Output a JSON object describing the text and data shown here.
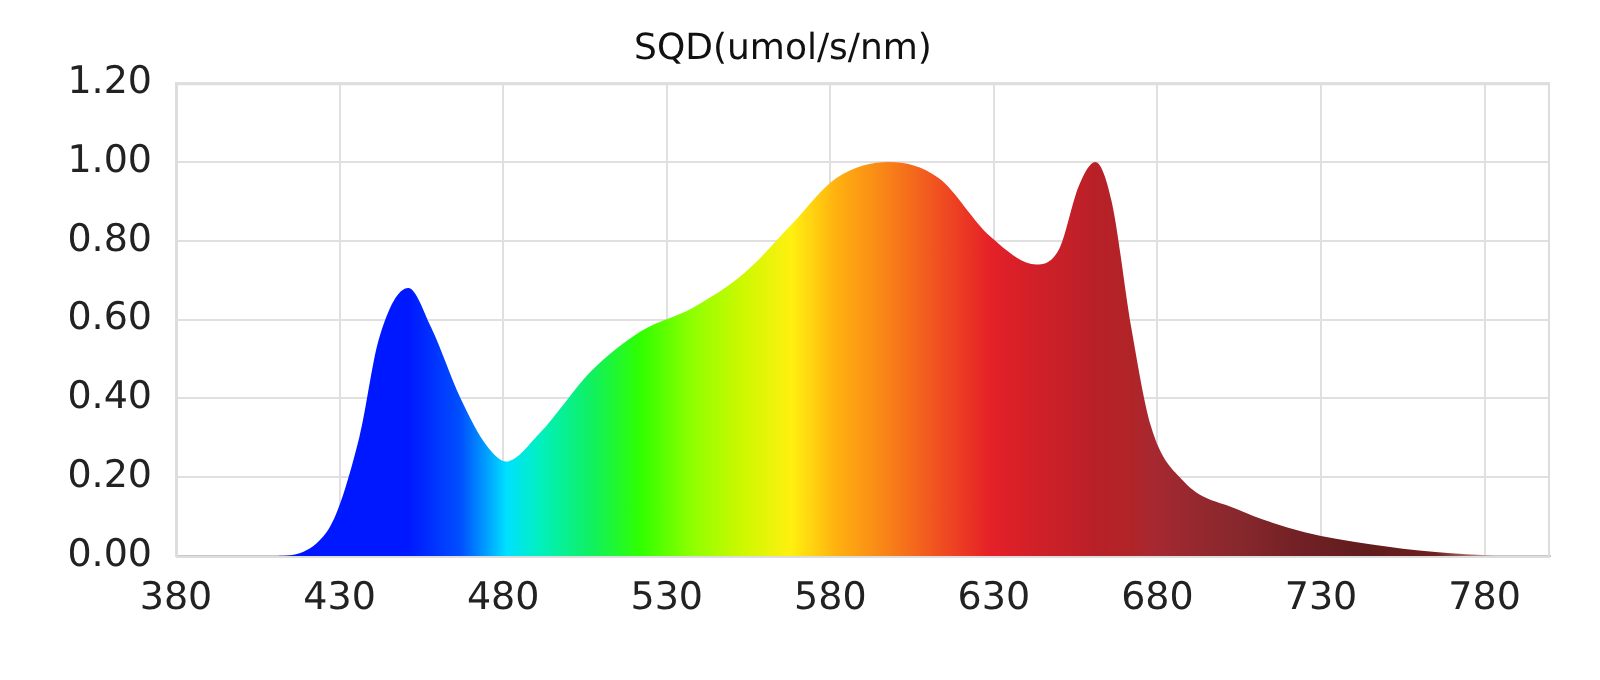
{
  "chart_data": {
    "type": "area",
    "title": "SQD(umol/s/nm)",
    "x": [
      380,
      402,
      410,
      426,
      436,
      442,
      451,
      458,
      467,
      475,
      481,
      491,
      507,
      522,
      538,
      554,
      568,
      582,
      598,
      613,
      629,
      643,
      650,
      656,
      661,
      666,
      672,
      678,
      688,
      704,
      725,
      745,
      765,
      784
    ],
    "series": [
      {
        "values": [
          0,
          0,
          0,
          0.06,
          0.3,
          0.55,
          0.68,
          0.58,
          0.4,
          0.28,
          0.24,
          0.31,
          0.47,
          0.57,
          0.63,
          0.72,
          0.84,
          0.96,
          1.0,
          0.96,
          0.81,
          0.74,
          0.78,
          0.94,
          1.0,
          0.9,
          0.58,
          0.33,
          0.19,
          0.12,
          0.06,
          0.03,
          0.01,
          0
        ],
        "colors": [
          "#a0a0b0",
          "#a0a0b0",
          "#0010ff",
          "#0018ff",
          "#0018ff",
          "#0018ff",
          "#0018ff",
          "#0030ff",
          "#0050ff",
          "#00a0ff",
          "#00e0ff",
          "#00f0c0",
          "#10f060",
          "#30ff00",
          "#90ff00",
          "#d0f800",
          "#fff010",
          "#ffb010",
          "#f88018",
          "#f05020",
          "#e52028",
          "#d02028",
          "#c82028",
          "#c02028",
          "#b82028",
          "#b52228",
          "#b02428",
          "#a82830",
          "#9a2830",
          "#88282c",
          "#702024",
          "#601c1c",
          "#702020",
          "#d0b0b0"
        ]
      }
    ],
    "xlim": [
      380,
      800
    ],
    "xticks": [
      380,
      430,
      480,
      530,
      580,
      630,
      680,
      730,
      780
    ],
    "ylim": [
      0,
      1.2
    ],
    "yticks": [
      {
        "value": 0,
        "label": "0.00"
      },
      {
        "value": 0.2,
        "label": "0.20"
      },
      {
        "value": 0.4,
        "label": "0.40"
      },
      {
        "value": 0.6,
        "label": "0.60"
      },
      {
        "value": 0.8,
        "label": "0.80"
      },
      {
        "value": 1.0,
        "label": "1.00"
      },
      {
        "value": 1.2,
        "label": "1.20"
      }
    ],
    "grid": true
  }
}
